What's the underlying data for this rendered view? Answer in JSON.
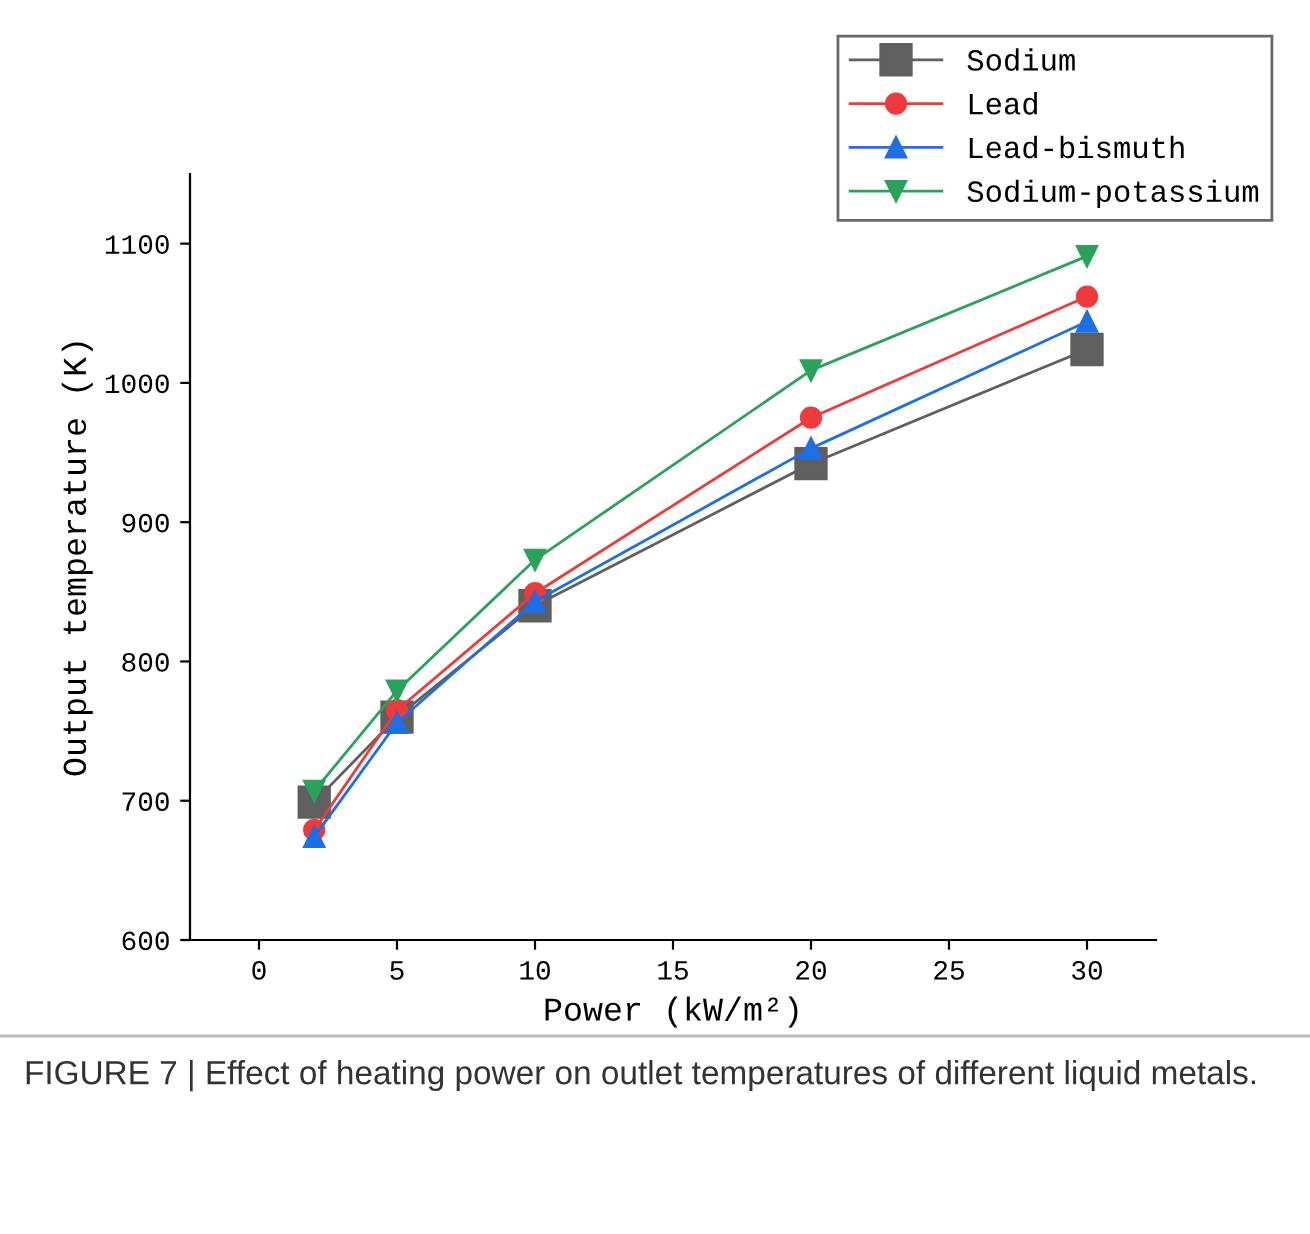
{
  "chart_data": {
    "type": "line",
    "xlabel": "Power (kW/m²)",
    "ylabel": "Output temperature (K)",
    "x": [
      2,
      5,
      10,
      20,
      30
    ],
    "series": [
      {
        "name": "Sodium",
        "color": "#5f5f5f",
        "marker": "square",
        "values": [
          699,
          760,
          840,
          942,
          1024
        ]
      },
      {
        "name": "Lead",
        "color": "#ee3a3a",
        "marker": "circle",
        "values": [
          679,
          765,
          849,
          975,
          1062
        ]
      },
      {
        "name": "Lead-bismuth",
        "color": "#1d6fe6",
        "marker": "triangle",
        "values": [
          674,
          756,
          843,
          953,
          1044
        ]
      },
      {
        "name": "Sodium-potassium",
        "color": "#2aa35a",
        "marker": "triangle_down",
        "values": [
          707,
          779,
          873,
          1009,
          1091
        ]
      }
    ],
    "xlim": [
      -2.5,
      32.5
    ],
    "xticks": [
      0,
      5,
      10,
      15,
      20,
      25,
      30
    ],
    "ylim": [
      600,
      1150
    ],
    "yticks": [
      600,
      700,
      800,
      900,
      1000,
      1100
    ],
    "grid": false,
    "legend": "top right",
    "line_style": "solid",
    "annotations": [
      "FIGURE 7 | Effect of heating power on outlet temperatures of different liquid metals."
    ]
  }
}
